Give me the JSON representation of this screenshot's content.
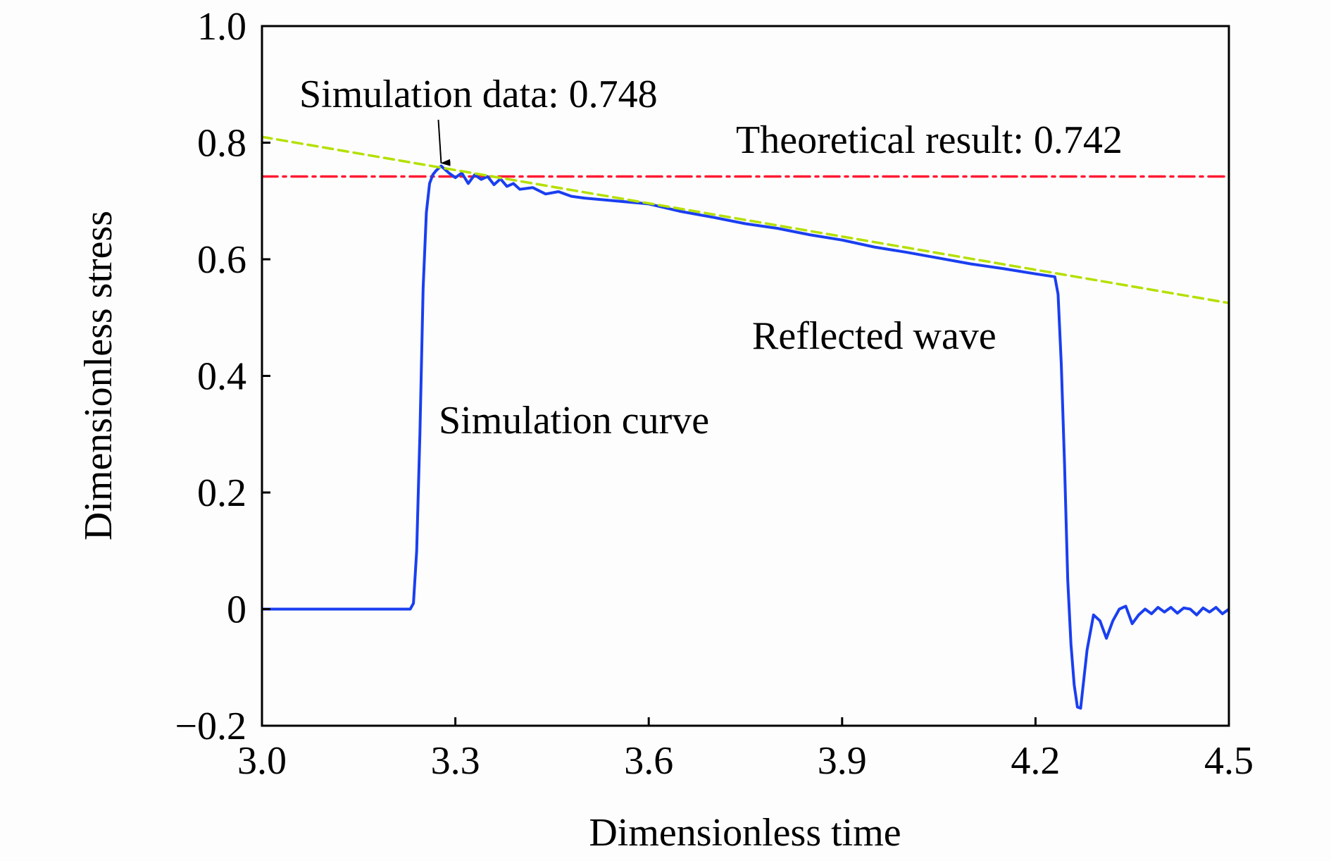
{
  "chart_data": {
    "type": "line",
    "title": "",
    "xlabel": "Dimensionless time",
    "ylabel": "Dimensionless stress",
    "xlim": [
      3.0,
      4.5
    ],
    "ylim": [
      -0.2,
      1.0
    ],
    "x_ticks": [
      3.0,
      3.3,
      3.6,
      3.9,
      4.2,
      4.5
    ],
    "x_tick_labels": [
      "3.0",
      "3.3",
      "3.6",
      "3.9",
      "4.2",
      "4.5"
    ],
    "y_ticks": [
      -0.2,
      0,
      0.2,
      0.4,
      0.6,
      0.8,
      1.0
    ],
    "y_tick_labels": [
      "−0.2",
      "0",
      "0.2",
      "0.4",
      "0.6",
      "0.8",
      "1.0"
    ],
    "grid": false,
    "series": [
      {
        "key": "simulation",
        "color": "#1a3ff0",
        "style": "solid",
        "x": [
          3.0,
          3.1,
          3.2,
          3.23,
          3.235,
          3.24,
          3.245,
          3.25,
          3.255,
          3.26,
          3.265,
          3.27,
          3.278,
          3.29,
          3.3,
          3.31,
          3.32,
          3.33,
          3.34,
          3.35,
          3.36,
          3.37,
          3.38,
          3.39,
          3.4,
          3.42,
          3.44,
          3.46,
          3.48,
          3.5,
          3.55,
          3.6,
          3.65,
          3.7,
          3.75,
          3.8,
          3.85,
          3.9,
          3.95,
          4.0,
          4.05,
          4.1,
          4.15,
          4.2,
          4.23,
          4.235,
          4.24,
          4.245,
          4.25,
          4.255,
          4.26,
          4.265,
          4.27,
          4.275,
          4.28,
          4.29,
          4.3,
          4.31,
          4.32,
          4.33,
          4.34,
          4.35,
          4.36,
          4.37,
          4.38,
          4.39,
          4.4,
          4.41,
          4.42,
          4.43,
          4.44,
          4.45,
          4.46,
          4.47,
          4.48,
          4.49,
          4.5
        ],
        "y": [
          0,
          0,
          0,
          0,
          0.01,
          0.1,
          0.3,
          0.55,
          0.68,
          0.73,
          0.745,
          0.752,
          0.76,
          0.748,
          0.74,
          0.748,
          0.73,
          0.745,
          0.737,
          0.742,
          0.728,
          0.738,
          0.725,
          0.73,
          0.72,
          0.723,
          0.712,
          0.716,
          0.708,
          0.705,
          0.7,
          0.695,
          0.682,
          0.672,
          0.661,
          0.653,
          0.642,
          0.633,
          0.621,
          0.612,
          0.602,
          0.592,
          0.584,
          0.575,
          0.57,
          0.54,
          0.42,
          0.25,
          0.05,
          -0.06,
          -0.13,
          -0.168,
          -0.17,
          -0.12,
          -0.07,
          -0.01,
          -0.02,
          -0.05,
          -0.02,
          0.0,
          0.005,
          -0.025,
          -0.01,
          0.0,
          -0.008,
          0.003,
          -0.005,
          0.003,
          -0.007,
          0.002,
          0.0,
          -0.01,
          0.002,
          -0.005,
          0.003,
          -0.008,
          0.0
        ]
      },
      {
        "key": "trend",
        "color": "#b4e000",
        "style": "dashed",
        "x": [
          3.0,
          4.5
        ],
        "y": [
          0.81,
          0.525
        ]
      },
      {
        "key": "theoretical",
        "color": "#ff1a33",
        "style": "dashdot",
        "x": [
          3.0,
          4.5
        ],
        "y": [
          0.742,
          0.742
        ]
      }
    ],
    "annotations": [
      {
        "key": "sim_data",
        "text": "Simulation data: 0.748",
        "arrow_to": [
          3.278,
          0.76
        ]
      },
      {
        "key": "theory",
        "text": "Theoretical result: 0.742"
      },
      {
        "key": "reflected",
        "text": "Reflected wave"
      },
      {
        "key": "curve",
        "text": "Simulation curve"
      }
    ]
  }
}
